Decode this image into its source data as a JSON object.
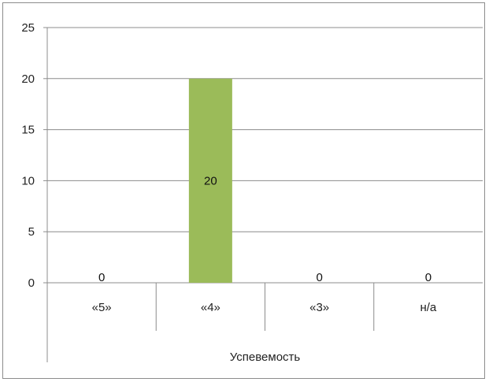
{
  "chart_data": {
    "type": "bar",
    "categories": [
      "«5»",
      "«4»",
      "«3»",
      "н/а"
    ],
    "values": [
      0,
      20,
      0,
      0
    ],
    "data_labels": [
      "0",
      "20",
      "0",
      "0"
    ],
    "y_ticks": [
      "0",
      "5",
      "10",
      "15",
      "20",
      "25"
    ],
    "xlabel": "Успевемость",
    "ylabel": "",
    "ylim": [
      0,
      25
    ],
    "grid": true,
    "legend": "none",
    "bar_color": "#9bbb59"
  }
}
